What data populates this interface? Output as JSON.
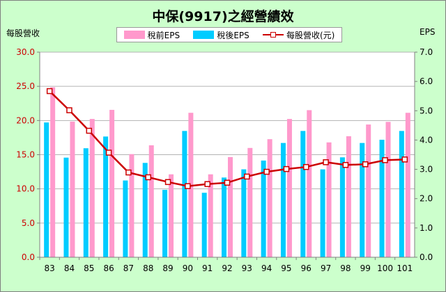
{
  "chart_data": {
    "type": "bar",
    "title": "中保(9917)之經營績效",
    "ylabel_left": "每股營收",
    "ylabel_right": "EPS",
    "ylim_left": [
      0,
      30
    ],
    "ylim_right": [
      0,
      7
    ],
    "yticks_left": [
      "0.0",
      "5.0",
      "10.0",
      "15.0",
      "20.0",
      "25.0",
      "30.0"
    ],
    "yticks_right": [
      "0.0",
      "1.0",
      "2.0",
      "3.0",
      "4.0",
      "5.0",
      "6.0",
      "7.0"
    ],
    "categories": [
      "83",
      "84",
      "85",
      "86",
      "87",
      "88",
      "89",
      "90",
      "91",
      "92",
      "93",
      "94",
      "95",
      "96",
      "97",
      "98",
      "99",
      "100",
      "101"
    ],
    "grid": true,
    "legend_position": "top",
    "series": [
      {
        "name": "稅前EPS",
        "axis": "right",
        "kind": "bar",
        "color": "#ff99cc",
        "values": [
          5.8,
          4.63,
          4.72,
          5.03,
          3.52,
          3.82,
          2.83,
          4.93,
          2.83,
          3.42,
          3.73,
          4.03,
          4.72,
          5.02,
          3.92,
          4.13,
          4.53,
          4.62,
          4.93
        ]
      },
      {
        "name": "稅後EPS",
        "axis": "right",
        "kind": "bar",
        "color": "#00ccff",
        "values": [
          4.6,
          3.4,
          3.72,
          4.12,
          2.62,
          3.22,
          2.3,
          4.31,
          2.2,
          2.72,
          3.0,
          3.3,
          3.9,
          4.31,
          3.0,
          3.41,
          3.9,
          4.01,
          4.31
        ]
      },
      {
        "name": "每股營收(元)",
        "axis": "left",
        "kind": "line",
        "color": "#cc0000",
        "values": [
          24.3,
          21.5,
          18.5,
          15.3,
          12.4,
          11.7,
          11.0,
          10.4,
          10.7,
          10.9,
          11.8,
          12.5,
          12.9,
          13.2,
          13.9,
          13.5,
          13.6,
          14.2,
          14.3
        ]
      }
    ]
  },
  "colors": {
    "background": "#ccffcc",
    "plot": "#ffffff",
    "axis": "#808080",
    "grid": "#b3b3b3"
  }
}
